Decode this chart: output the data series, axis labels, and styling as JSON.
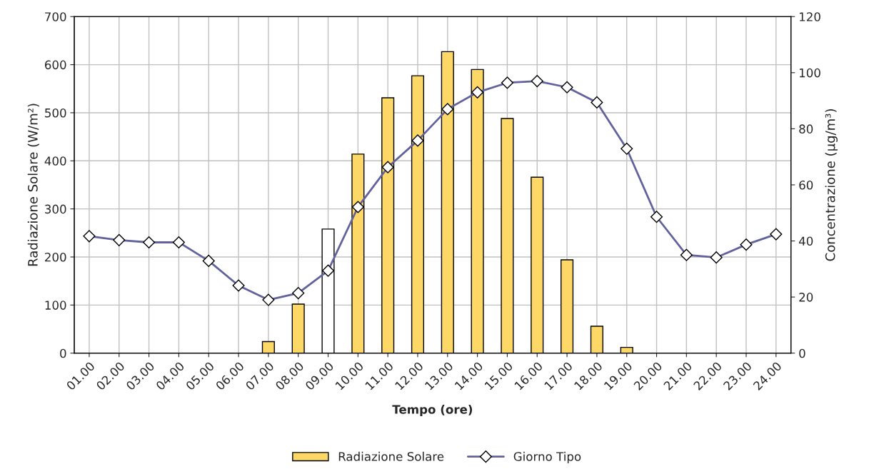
{
  "chart_data": {
    "type": "bar",
    "categories": [
      "01.00",
      "02.00",
      "03.00",
      "04.00",
      "05.00",
      "06.00",
      "07.00",
      "08.00",
      "09.00",
      "10.00",
      "11.00",
      "12.00",
      "13.00",
      "14.00",
      "15.00",
      "16.00",
      "17.00",
      "18.00",
      "19.00",
      "20.00",
      "21.00",
      "22.00",
      "23.00",
      "24.00"
    ],
    "series": [
      {
        "name": "Radiazione Solare",
        "color": "#fdd866",
        "colors": [
          "#fdd866",
          "#fdd866",
          "#fdd866",
          "#fdd866",
          "#fdd866",
          "#fdd866",
          "#fdd866",
          "#fdd866",
          "#ffffff",
          "#fdd866",
          "#fdd866",
          "#fdd866",
          "#fdd866",
          "#fdd866",
          "#fdd866",
          "#fdd866",
          "#fdd866",
          "#fdd866",
          "#fdd866",
          "#fdd866",
          "#fdd866",
          "#fdd866",
          "#fdd866",
          "#fdd866"
        ],
        "values": [
          null,
          null,
          null,
          null,
          null,
          null,
          24,
          102,
          258,
          414,
          531,
          577,
          627,
          590,
          488,
          366,
          194,
          56,
          12,
          null,
          null,
          null,
          null,
          null
        ]
      },
      {
        "name": "Giorno Tipo",
        "type": "line",
        "axis": "y2",
        "color": "#62629c",
        "marker": "diamond",
        "line_style": "solid",
        "values": [
          41.7,
          40.3,
          39.5,
          39.5,
          32.9,
          24.1,
          19.0,
          21.4,
          29.4,
          52.1,
          66.3,
          75.8,
          87.0,
          93.0,
          96.4,
          97.0,
          94.8,
          89.4,
          72.9,
          48.6,
          35.0,
          34.1,
          38.7,
          42.4
        ]
      }
    ],
    "xlabel": "Tempo (ore)",
    "ylabel": "Radiazione Solare (W/m²)",
    "y2label": "Concentrazione (µg/m³)",
    "ylim": [
      0,
      700
    ],
    "yticks": [
      0,
      100,
      200,
      300,
      400,
      500,
      600,
      700
    ],
    "y2lim": [
      0,
      120
    ],
    "y2ticks": [
      0,
      20,
      40,
      60,
      80,
      100,
      120
    ],
    "grid": true,
    "legend": "bottom"
  }
}
